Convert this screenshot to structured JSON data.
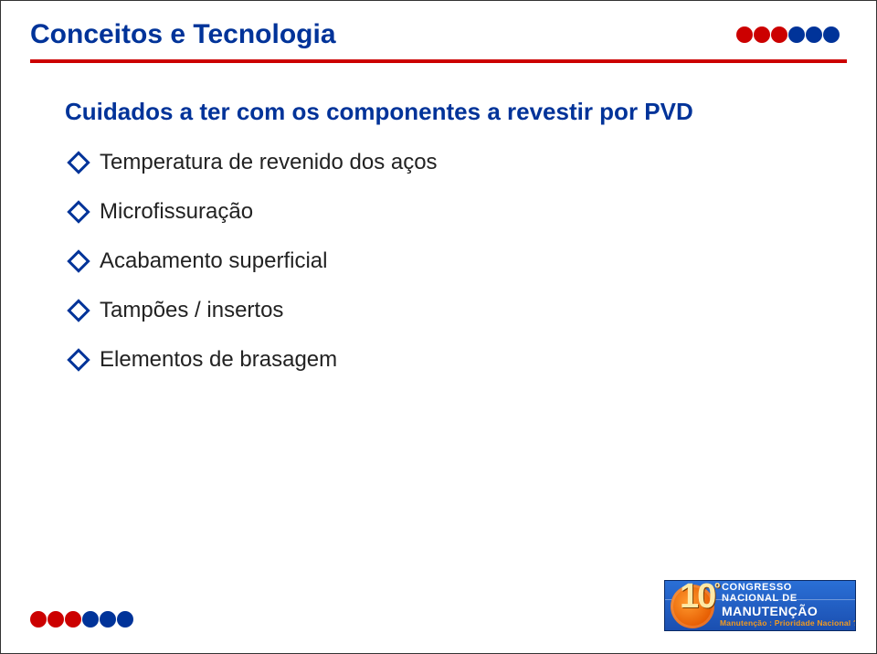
{
  "colors": {
    "title": "#003399",
    "rule": "#cc0000",
    "bullet_text": "#222222",
    "dot_red": "#cc0000",
    "dot_blue": "#003399",
    "background": "#ffffff"
  },
  "header": {
    "title": "Conceitos e Tecnologia"
  },
  "dots": {
    "top_sequence": [
      "red",
      "red",
      "red",
      "blue",
      "blue",
      "blue"
    ],
    "bottom_sequence": [
      "red",
      "red",
      "red",
      "blue",
      "blue",
      "blue"
    ]
  },
  "content": {
    "subtitle": "Cuidados a ter com os componentes a revestir por PVD",
    "items": [
      "Temperatura de revenido dos aços",
      "Microfissuração",
      "Acabamento superficial",
      "Tampões / insertos",
      "Elementos de brasagem"
    ]
  },
  "logo": {
    "number": "10",
    "ordinal": "º",
    "line1": "CONGRESSO",
    "line2": "NACIONAL DE",
    "line3": "MANUTENÇÃO",
    "tagline": "Manutenção : Prioridade Nacional ?"
  },
  "style": {
    "title_fontsize": 30,
    "subtitle_fontsize": 26,
    "bullet_fontsize": 24,
    "dot_diameter": 18,
    "diamond_size": 18
  }
}
